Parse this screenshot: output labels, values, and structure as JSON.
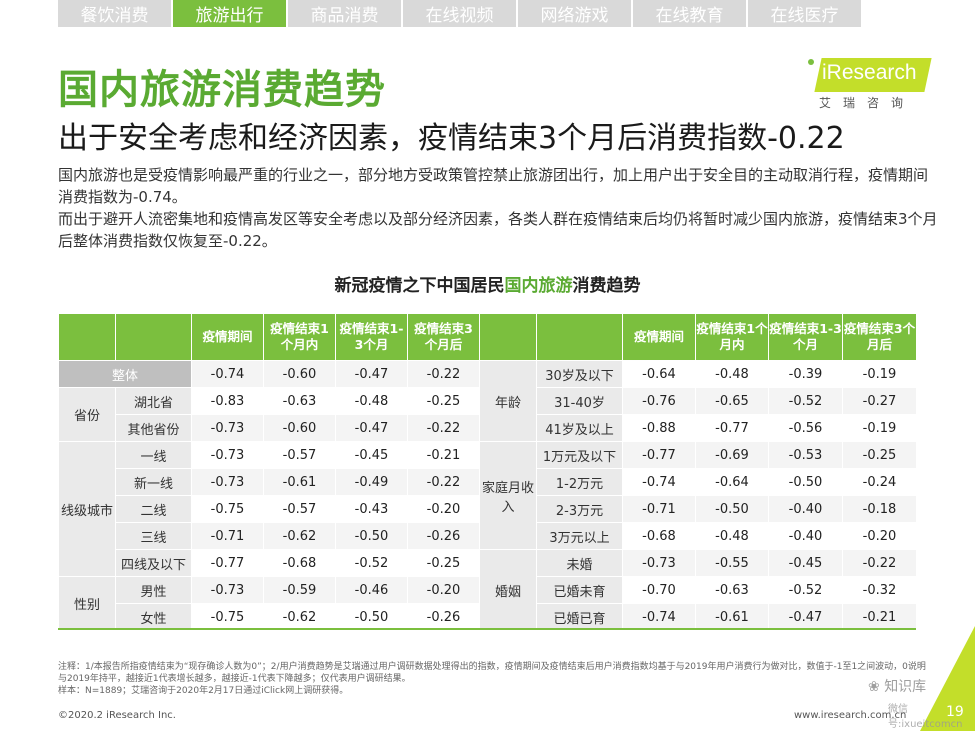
{
  "tabs": [
    "餐饮消费",
    "旅游出行",
    "商品消费",
    "在线视频",
    "网络游戏",
    "在线教育",
    "在线医疗"
  ],
  "active_tab": 1,
  "logo": {
    "brand": "iResearch",
    "sub": "艾瑞咨询"
  },
  "title": "国内旅游消费趋势",
  "subtitle": "出于安全考虑和经济因素，疫情结束3个月后消费指数-0.22",
  "description": [
    "国内旅游也是受疫情影响最严重的行业之一，部分地方受政策管控禁止旅游团出行，加上用户出于安全目的主动取消行程，疫情期间消费指数为-0.74。",
    "而出于避开人流密集地和疫情高发区等安全考虑以及部分经济因素，各类人群在疫情结束后均仍将暂时减少国内旅游，疫情结束3个月后整体消费指数仅恢复至-0.22。"
  ],
  "table_title": {
    "prefix": "新冠疫情之下中国居民",
    "highlight": "国内旅游",
    "suffix": "消费趋势"
  },
  "columns": [
    "疫情期间",
    "疫情结束1个月内",
    "疫情结束1-3个月",
    "疫情结束3个月后"
  ],
  "left": {
    "whole": {
      "label": "整体",
      "values": [
        "-0.74",
        "-0.60",
        "-0.47",
        "-0.22"
      ]
    },
    "province": {
      "label": "省份",
      "rows": [
        {
          "label": "湖北省",
          "values": [
            "-0.83",
            "-0.63",
            "-0.48",
            "-0.25"
          ]
        },
        {
          "label": "其他省份",
          "values": [
            "-0.73",
            "-0.60",
            "-0.47",
            "-0.22"
          ]
        }
      ]
    },
    "city": {
      "label": "线级城市",
      "rows": [
        {
          "label": "一线",
          "values": [
            "-0.73",
            "-0.57",
            "-0.45",
            "-0.21"
          ]
        },
        {
          "label": "新一线",
          "values": [
            "-0.73",
            "-0.61",
            "-0.49",
            "-0.22"
          ]
        },
        {
          "label": "二线",
          "values": [
            "-0.75",
            "-0.57",
            "-0.43",
            "-0.20"
          ]
        },
        {
          "label": "三线",
          "values": [
            "-0.71",
            "-0.62",
            "-0.50",
            "-0.26"
          ]
        },
        {
          "label": "四线及以下",
          "values": [
            "-0.77",
            "-0.68",
            "-0.52",
            "-0.25"
          ]
        }
      ]
    },
    "gender": {
      "label": "性别",
      "rows": [
        {
          "label": "男性",
          "values": [
            "-0.73",
            "-0.59",
            "-0.46",
            "-0.20"
          ]
        },
        {
          "label": "女性",
          "values": [
            "-0.75",
            "-0.62",
            "-0.50",
            "-0.26"
          ]
        }
      ]
    }
  },
  "right": {
    "age": {
      "label": "年龄",
      "rows": [
        {
          "label": "30岁及以下",
          "values": [
            "-0.64",
            "-0.48",
            "-0.39",
            "-0.19"
          ]
        },
        {
          "label": "31-40岁",
          "values": [
            "-0.76",
            "-0.65",
            "-0.52",
            "-0.27"
          ]
        },
        {
          "label": "41岁及以上",
          "values": [
            "-0.88",
            "-0.77",
            "-0.56",
            "-0.19"
          ]
        }
      ]
    },
    "income": {
      "label": "家庭月收入",
      "rows": [
        {
          "label": "1万元及以下",
          "values": [
            "-0.77",
            "-0.69",
            "-0.53",
            "-0.25"
          ]
        },
        {
          "label": "1-2万元",
          "values": [
            "-0.74",
            "-0.64",
            "-0.50",
            "-0.24"
          ]
        },
        {
          "label": "2-3万元",
          "values": [
            "-0.71",
            "-0.50",
            "-0.40",
            "-0.18"
          ]
        },
        {
          "label": "3万元以上",
          "values": [
            "-0.68",
            "-0.48",
            "-0.40",
            "-0.20"
          ]
        }
      ]
    },
    "marriage": {
      "label": "婚姻",
      "rows": [
        {
          "label": "未婚",
          "values": [
            "-0.73",
            "-0.55",
            "-0.45",
            "-0.22"
          ]
        },
        {
          "label": "已婚未育",
          "values": [
            "-0.70",
            "-0.63",
            "-0.52",
            "-0.32"
          ]
        },
        {
          "label": "已婚已育",
          "values": [
            "-0.74",
            "-0.61",
            "-0.47",
            "-0.21"
          ]
        }
      ]
    }
  },
  "notes": [
    "注释：1/本报告所指疫情结束为“现存确诊人数为0”；2/用户消费趋势是艾瑞通过用户调研数据处理得出的指数，疫情期间及疫情结束后用户消费指数均基于与2019年用户消费行为做对比，数值于-1至1之间波动，0说明与2019年持平，越接近1代表增长越多，越接近-1代表下降越多；仅代表用户调研结果。",
    "样本：N=1889；艾瑞咨询于2020年2月17日通过iClick网上调研获得。"
  ],
  "copyright": "©2020.2 iResearch Inc.",
  "website": "www.iresearch.com.cn",
  "page_number": "19",
  "watermark": {
    "line1": "知识库",
    "line2": "微信号:ixueitcomcn"
  },
  "colors": {
    "accent_green": "#7bbf3e",
    "title_green": "#5aaa32",
    "logo_lime": "#c3de2a"
  }
}
